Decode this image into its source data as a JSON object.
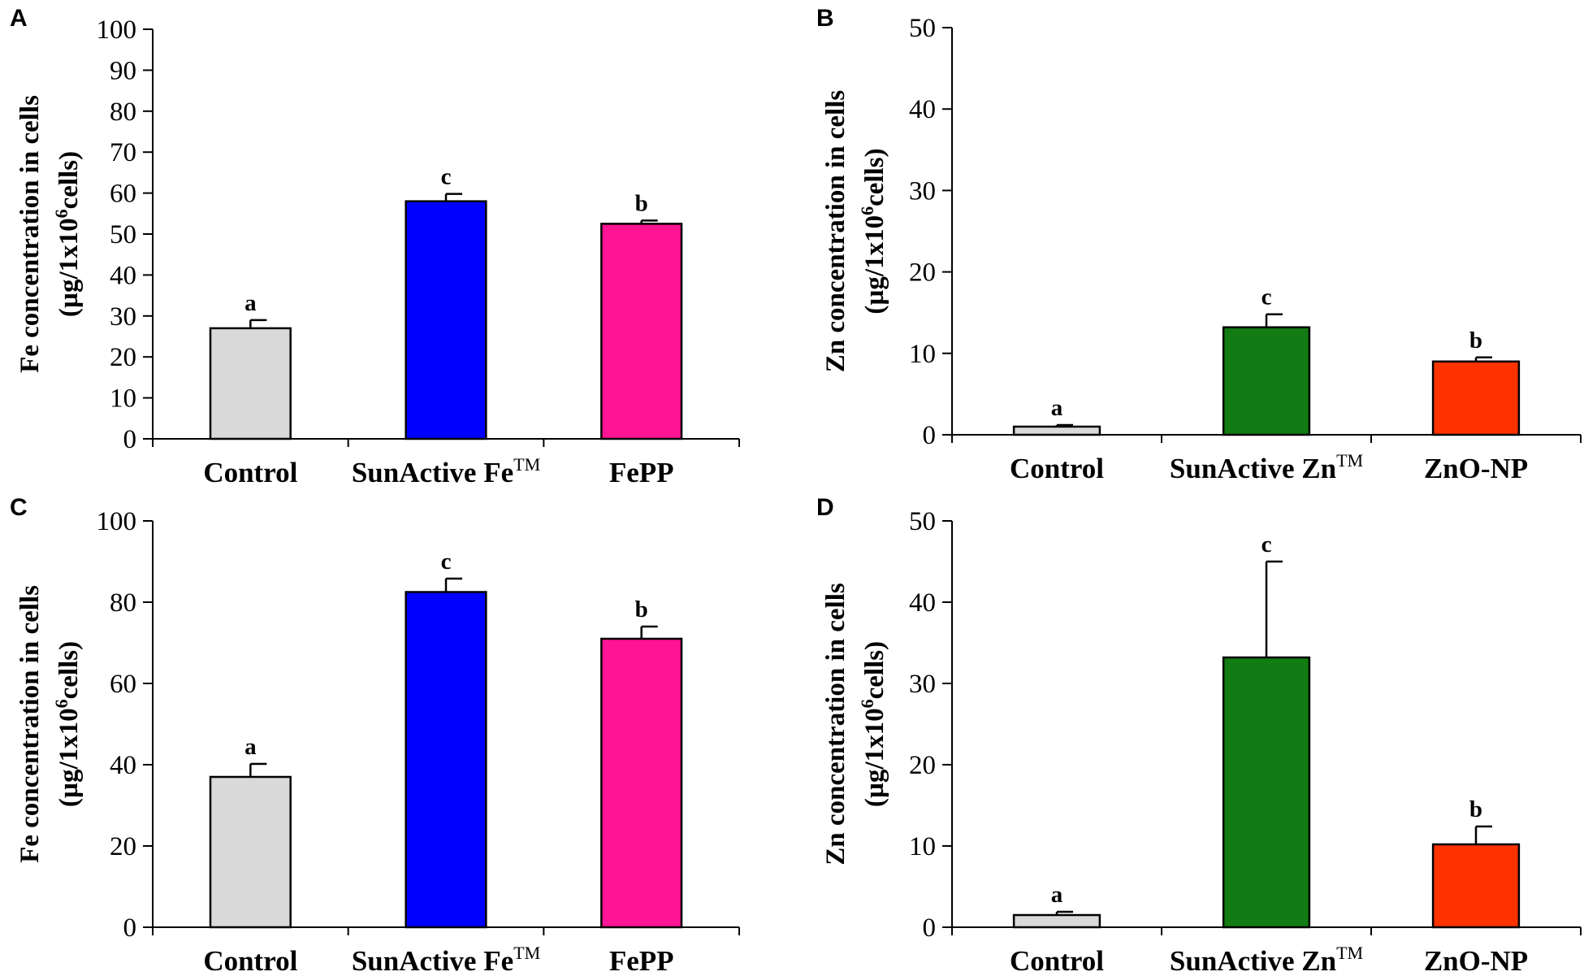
{
  "chart_data": [
    {
      "panel": "A",
      "type": "bar",
      "categories": [
        "Control",
        "SunActive Fe",
        "FePP"
      ],
      "category_superscripts": [
        "",
        "TM",
        ""
      ],
      "values": [
        27,
        58,
        52.5
      ],
      "errors": [
        2,
        1.8,
        0.8
      ],
      "significance": [
        "a",
        "c",
        "b"
      ],
      "colors": [
        "#d9d9d9",
        "#0000ff",
        "#ff1493"
      ],
      "ylabel_line1": "Fe concentration in cells",
      "ylabel_line2_pre": "(µg/1x10",
      "ylabel_line2_sup": "6",
      "ylabel_line2_post": "cells)",
      "ylim": [
        0,
        100
      ],
      "yticks": [
        0,
        10,
        20,
        30,
        40,
        50,
        60,
        70,
        80,
        90,
        100
      ]
    },
    {
      "panel": "B",
      "type": "bar",
      "categories": [
        "Control",
        "SunActive Zn",
        "ZnO-NP"
      ],
      "category_superscripts": [
        "",
        "TM",
        ""
      ],
      "values": [
        1,
        13.2,
        9
      ],
      "errors": [
        0.2,
        1.6,
        0.5
      ],
      "significance": [
        "a",
        "c",
        "b"
      ],
      "colors": [
        "#d9d9d9",
        "#137b13",
        "#ff3300"
      ],
      "ylabel_line1": "Zn concentration in cells",
      "ylabel_line2_pre": "(µg/1x10",
      "ylabel_line2_sup": "6",
      "ylabel_line2_post": "cells)",
      "ylim": [
        0,
        50
      ],
      "yticks": [
        0,
        10,
        20,
        30,
        40,
        50
      ]
    },
    {
      "panel": "C",
      "type": "bar",
      "categories": [
        "Control",
        "SunActive Fe",
        "FePP"
      ],
      "category_superscripts": [
        "",
        "TM",
        ""
      ],
      "values": [
        37,
        82.5,
        71
      ],
      "errors": [
        3.2,
        3.3,
        3
      ],
      "significance": [
        "a",
        "c",
        "b"
      ],
      "colors": [
        "#d9d9d9",
        "#0000ff",
        "#ff1493"
      ],
      "ylabel_line1": "Fe concentration in cells",
      "ylabel_line2_pre": "(µg/1x10",
      "ylabel_line2_sup": "6",
      "ylabel_line2_post": "cells)",
      "ylim": [
        0,
        100
      ],
      "yticks": [
        0,
        20,
        40,
        60,
        80,
        100
      ]
    },
    {
      "panel": "D",
      "type": "bar",
      "categories": [
        "Control",
        "SunActive Zn",
        "ZnO-NP"
      ],
      "category_superscripts": [
        "",
        "TM",
        ""
      ],
      "values": [
        1.5,
        33.2,
        10.2
      ],
      "errors": [
        0.4,
        11.8,
        2.2
      ],
      "significance": [
        "a",
        "c",
        "b"
      ],
      "colors": [
        "#d9d9d9",
        "#137b13",
        "#ff3300"
      ],
      "ylabel_line1": "Zn concentration in cells",
      "ylabel_line2_pre": "(µg/1x10",
      "ylabel_line2_sup": "6",
      "ylabel_line2_post": "cells)",
      "ylim": [
        0,
        50
      ],
      "yticks": [
        0,
        10,
        20,
        30,
        40,
        50
      ]
    }
  ]
}
